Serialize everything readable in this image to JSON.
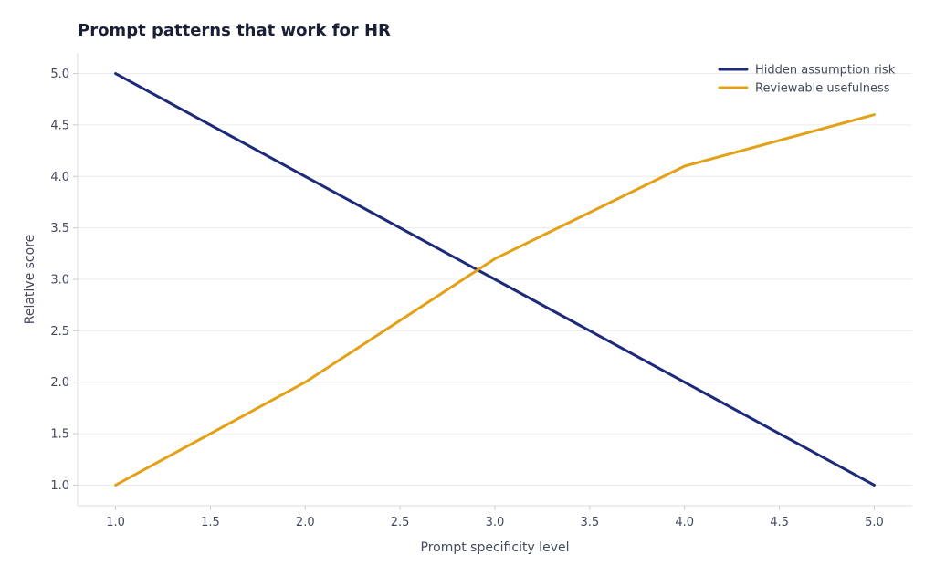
{
  "chart_data": {
    "type": "line",
    "title": "Prompt patterns that work for HR",
    "xlabel": "Prompt specificity level",
    "ylabel": "Relative score",
    "xlim": [
      0.8,
      5.2
    ],
    "ylim": [
      0.8,
      5.2
    ],
    "xticks": [
      1.0,
      1.5,
      2.0,
      2.5,
      3.0,
      3.5,
      4.0,
      4.5,
      5.0
    ],
    "yticks": [
      1.0,
      1.5,
      2.0,
      2.5,
      3.0,
      3.5,
      4.0,
      4.5,
      5.0
    ],
    "xtick_labels": [
      "1.0",
      "1.5",
      "2.0",
      "2.5",
      "3.0",
      "3.5",
      "4.0",
      "4.5",
      "5.0"
    ],
    "ytick_labels": [
      "1.0",
      "1.5",
      "2.0",
      "2.5",
      "3.0",
      "3.5",
      "4.0",
      "4.5",
      "5.0"
    ],
    "grid": true,
    "legend_position": "top-right",
    "x": [
      1,
      2,
      3,
      4,
      5
    ],
    "series": [
      {
        "name": "Hidden assumption risk",
        "color": "#1c2a78",
        "values": [
          5.0,
          4.0,
          3.0,
          2.0,
          1.0
        ]
      },
      {
        "name": "Reviewable usefulness",
        "color": "#e3a118",
        "values": [
          1.0,
          2.0,
          3.2,
          4.1,
          4.6
        ]
      }
    ]
  }
}
